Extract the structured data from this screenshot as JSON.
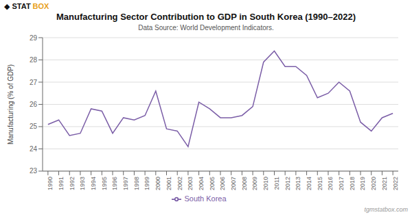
{
  "chart_data": {
    "type": "line",
    "title": "Manufacturing Sector Contribution to GDP in South Korea (1990–2022)",
    "subtitle": "Data Source: World Development Indicators.",
    "y_label": "Manufacturing (% of GDP)",
    "x": [
      1990,
      1991,
      1992,
      1993,
      1994,
      1995,
      1996,
      1997,
      1998,
      1999,
      2000,
      2001,
      2002,
      2003,
      2004,
      2005,
      2006,
      2007,
      2008,
      2009,
      2010,
      2011,
      2012,
      2013,
      2014,
      2015,
      2016,
      2017,
      2018,
      2019,
      2020,
      2021,
      2022
    ],
    "xlim": [
      1989.5,
      2022.5
    ],
    "xticks": [
      1990,
      1991,
      1992,
      1993,
      1994,
      1995,
      1996,
      1997,
      1998,
      1999,
      2000,
      2001,
      2002,
      2003,
      2004,
      2005,
      2006,
      2007,
      2008,
      2009,
      2010,
      2011,
      2012,
      2013,
      2014,
      2015,
      2016,
      2017,
      2018,
      2019,
      2020,
      2021,
      2022
    ],
    "series": [
      {
        "name": "South Korea",
        "color": "#7B5EA7",
        "values": [
          25.1,
          25.3,
          24.6,
          24.7,
          25.8,
          25.7,
          24.7,
          25.4,
          25.3,
          25.5,
          26.6,
          24.9,
          24.8,
          24.1,
          26.1,
          25.8,
          25.4,
          25.4,
          25.5,
          25.9,
          27.9,
          28.4,
          27.7,
          27.7,
          27.3,
          26.3,
          26.5,
          27.0,
          26.6,
          25.2,
          24.8,
          25.4,
          25.6
        ]
      }
    ],
    "ylim": [
      23,
      29
    ],
    "yticks": [
      23,
      24,
      25,
      26,
      27,
      28,
      29
    ],
    "grid": true,
    "legend": "bottom",
    "annotations": [
      {
        "text": "◆ STAT"
      },
      {
        "text": "BOX",
        "color": "#e8a020"
      },
      {
        "text": "tgmstatbox.com"
      }
    ]
  }
}
